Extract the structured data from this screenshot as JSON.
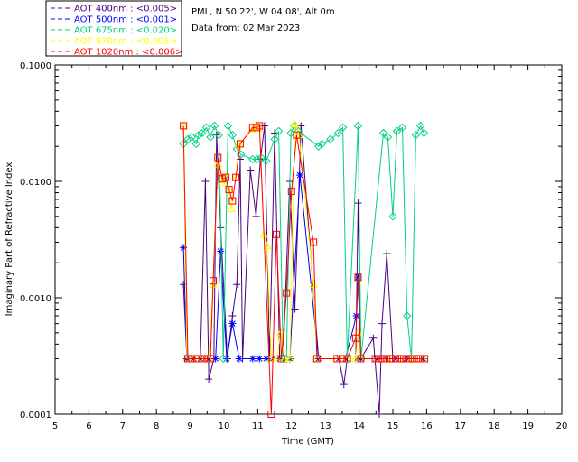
{
  "header": {
    "site_line": "PML, N 50 22', W 04 08', Alt 0m",
    "date_line": "Data from: 02 Mar 2023"
  },
  "chart_data": {
    "type": "line",
    "xlabel": "Time (GMT)",
    "ylabel": "Imaginary Part of Refractive Index",
    "xlim": [
      5,
      20
    ],
    "ylim": [
      0.0001,
      0.1
    ],
    "yscale": "log",
    "x_tick_labels": [
      "5",
      "6",
      "7",
      "8",
      "9",
      "10",
      "11",
      "12",
      "13",
      "14",
      "15",
      "16",
      "17",
      "18",
      "19",
      "20"
    ],
    "y_tick_labels": [
      "0.0001",
      "0.0010",
      "0.0100",
      "0.1000"
    ],
    "legend_position": "top-left",
    "series": [
      {
        "name": "AOT 400nm : <0.005>",
        "color": "#4b0082",
        "marker": "plus",
        "points": [
          [
            8.8,
            0.0013
          ],
          [
            8.9,
            0.0003
          ],
          [
            9.1,
            0.0003
          ],
          [
            9.3,
            0.0003
          ],
          [
            9.45,
            0.01
          ],
          [
            9.55,
            0.0002
          ],
          [
            9.7,
            0.0003
          ],
          [
            9.78,
            0.025
          ],
          [
            9.9,
            0.004
          ],
          [
            10.1,
            0.0003
          ],
          [
            10.25,
            0.0007
          ],
          [
            10.38,
            0.0013
          ],
          [
            10.48,
            0.0155
          ],
          [
            10.55,
            0.0003
          ],
          [
            10.78,
            0.0125
          ],
          [
            10.95,
            0.005
          ],
          [
            11.08,
            0.0155
          ],
          [
            11.2,
            0.03
          ],
          [
            11.35,
            0.0003
          ],
          [
            11.5,
            0.026
          ],
          [
            11.65,
            0.0003
          ],
          [
            11.75,
            0.0003
          ],
          [
            11.95,
            0.01
          ],
          [
            12.1,
            0.0008
          ],
          [
            12.28,
            0.03
          ],
          [
            12.8,
            0.0003
          ],
          [
            13.4,
            0.0003
          ],
          [
            13.55,
            0.00018
          ],
          [
            13.65,
            0.0003
          ],
          [
            13.9,
            0.0003
          ],
          [
            13.97,
            0.0065
          ],
          [
            14.05,
            0.0003
          ],
          [
            14.42,
            0.00045
          ],
          [
            14.6,
            0.0001
          ],
          [
            14.68,
            0.0006
          ],
          [
            14.82,
            0.0024
          ],
          [
            15.0,
            0.0003
          ],
          [
            15.3,
            0.0003
          ],
          [
            15.9,
            0.0003
          ]
        ]
      },
      {
        "name": "AOT 500nm : <0.001>",
        "color": "#0000ff",
        "marker": "asterisk",
        "points": [
          [
            8.8,
            0.0027
          ],
          [
            8.9,
            0.0003
          ],
          [
            9.1,
            0.0003
          ],
          [
            9.3,
            0.0003
          ],
          [
            9.55,
            0.0003
          ],
          [
            9.75,
            0.0003
          ],
          [
            9.9,
            0.0025
          ],
          [
            10.08,
            0.0003
          ],
          [
            10.25,
            0.0006
          ],
          [
            10.45,
            0.0003
          ],
          [
            10.85,
            0.0003
          ],
          [
            11.05,
            0.0003
          ],
          [
            11.25,
            0.0003
          ],
          [
            11.45,
            0.0003
          ],
          [
            11.65,
            0.0003
          ],
          [
            11.95,
            0.0003
          ],
          [
            12.25,
            0.0113
          ],
          [
            12.8,
            0.0003
          ],
          [
            13.4,
            0.0003
          ],
          [
            13.6,
            0.0003
          ],
          [
            13.92,
            0.0007
          ],
          [
            13.97,
            0.0015
          ],
          [
            14.05,
            0.0003
          ],
          [
            14.5,
            0.0003
          ],
          [
            14.8,
            0.0003
          ],
          [
            15.1,
            0.0003
          ],
          [
            15.4,
            0.0003
          ],
          [
            15.9,
            0.0003
          ]
        ]
      },
      {
        "name": "AOT 675nm : <0.020>",
        "color": "#00d27f",
        "marker": "diamond",
        "points": [
          [
            8.8,
            0.021
          ],
          [
            8.93,
            0.023
          ],
          [
            9.05,
            0.024
          ],
          [
            9.18,
            0.021
          ],
          [
            9.25,
            0.025
          ],
          [
            9.35,
            0.026
          ],
          [
            9.48,
            0.029
          ],
          [
            9.6,
            0.024
          ],
          [
            9.72,
            0.03
          ],
          [
            9.85,
            0.025
          ],
          [
            9.98,
            0.0003
          ],
          [
            10.12,
            0.03
          ],
          [
            10.25,
            0.025
          ],
          [
            10.38,
            0.019
          ],
          [
            10.5,
            0.017
          ],
          [
            10.85,
            0.0155
          ],
          [
            10.98,
            0.0155
          ],
          [
            11.1,
            0.016
          ],
          [
            11.25,
            0.015
          ],
          [
            11.5,
            0.023
          ],
          [
            11.62,
            0.027
          ],
          [
            11.75,
            0.0003
          ],
          [
            11.85,
            0.0003
          ],
          [
            11.98,
            0.026
          ],
          [
            12.08,
            0.03
          ],
          [
            12.2,
            0.027
          ],
          [
            12.8,
            0.02
          ],
          [
            12.9,
            0.021
          ],
          [
            13.15,
            0.023
          ],
          [
            13.38,
            0.026
          ],
          [
            13.52,
            0.029
          ],
          [
            13.65,
            0.0003
          ],
          [
            13.97,
            0.03
          ],
          [
            14.06,
            0.0003
          ],
          [
            14.72,
            0.026
          ],
          [
            14.85,
            0.024
          ],
          [
            15.0,
            0.005
          ],
          [
            15.12,
            0.027
          ],
          [
            15.28,
            0.029
          ],
          [
            15.42,
            0.0007
          ],
          [
            15.55,
            0.0003
          ],
          [
            15.68,
            0.025
          ],
          [
            15.82,
            0.03
          ],
          [
            15.92,
            0.026
          ]
        ]
      },
      {
        "name": "AOT 870nm : <0.005>",
        "color": "#ffff00",
        "marker": "triangle",
        "points": [
          [
            8.8,
            0.03
          ],
          [
            8.9,
            0.0003
          ],
          [
            9.05,
            0.0003
          ],
          [
            9.2,
            0.0003
          ],
          [
            9.35,
            0.0003
          ],
          [
            9.55,
            0.0003
          ],
          [
            9.68,
            0.0013
          ],
          [
            9.82,
            0.014
          ],
          [
            9.95,
            0.0097
          ],
          [
            10.05,
            0.011
          ],
          [
            10.15,
            0.0085
          ],
          [
            10.22,
            0.0058
          ],
          [
            10.35,
            0.0108
          ],
          [
            10.45,
            0.021
          ],
          [
            10.85,
            0.028
          ],
          [
            10.97,
            0.03
          ],
          [
            11.05,
            0.029
          ],
          [
            11.18,
            0.0035
          ],
          [
            11.28,
            0.0028
          ],
          [
            11.4,
            0.0003
          ],
          [
            11.55,
            0.0003
          ],
          [
            11.68,
            0.0005
          ],
          [
            11.8,
            0.0003
          ],
          [
            11.95,
            0.0003
          ],
          [
            12.1,
            0.031
          ],
          [
            12.22,
            0.025
          ],
          [
            12.65,
            0.0013
          ],
          [
            12.75,
            0.0003
          ],
          [
            13.35,
            0.0003
          ],
          [
            13.5,
            0.0003
          ],
          [
            13.65,
            0.0003
          ],
          [
            13.9,
            0.0003
          ],
          [
            13.97,
            0.0005
          ],
          [
            14.05,
            0.0003
          ],
          [
            14.55,
            0.0003
          ],
          [
            14.85,
            0.0003
          ],
          [
            15.2,
            0.0003
          ],
          [
            15.55,
            0.0003
          ],
          [
            15.9,
            0.0003
          ]
        ]
      },
      {
        "name": "AOT 1020nm : <0.006>",
        "color": "#ff0000",
        "marker": "square",
        "points": [
          [
            8.8,
            0.03
          ],
          [
            8.93,
            0.0003
          ],
          [
            9.05,
            0.0003
          ],
          [
            9.2,
            0.0003
          ],
          [
            9.35,
            0.0003
          ],
          [
            9.5,
            0.0003
          ],
          [
            9.6,
            0.0003
          ],
          [
            9.68,
            0.0014
          ],
          [
            9.82,
            0.016
          ],
          [
            9.95,
            0.0105
          ],
          [
            10.05,
            0.0108
          ],
          [
            10.15,
            0.0085
          ],
          [
            10.25,
            0.0068
          ],
          [
            10.35,
            0.0108
          ],
          [
            10.48,
            0.021
          ],
          [
            10.85,
            0.029
          ],
          [
            10.97,
            0.029
          ],
          [
            11.05,
            0.03
          ],
          [
            11.4,
            0.0001
          ],
          [
            11.55,
            0.0035
          ],
          [
            11.7,
            0.0003
          ],
          [
            11.85,
            0.0011
          ],
          [
            12.0,
            0.0082
          ],
          [
            12.15,
            0.025
          ],
          [
            12.65,
            0.003
          ],
          [
            12.75,
            0.0003
          ],
          [
            13.35,
            0.0003
          ],
          [
            13.5,
            0.0003
          ],
          [
            13.65,
            0.0003
          ],
          [
            13.9,
            0.00045
          ],
          [
            13.97,
            0.0015
          ],
          [
            14.05,
            0.0003
          ],
          [
            14.48,
            0.0003
          ],
          [
            14.58,
            0.0003
          ],
          [
            14.7,
            0.0003
          ],
          [
            14.82,
            0.0003
          ],
          [
            14.95,
            0.0003
          ],
          [
            15.08,
            0.0003
          ],
          [
            15.2,
            0.0003
          ],
          [
            15.32,
            0.0003
          ],
          [
            15.45,
            0.0003
          ],
          [
            15.58,
            0.0003
          ],
          [
            15.7,
            0.0003
          ],
          [
            15.82,
            0.0003
          ],
          [
            15.94,
            0.0003
          ]
        ]
      }
    ]
  }
}
